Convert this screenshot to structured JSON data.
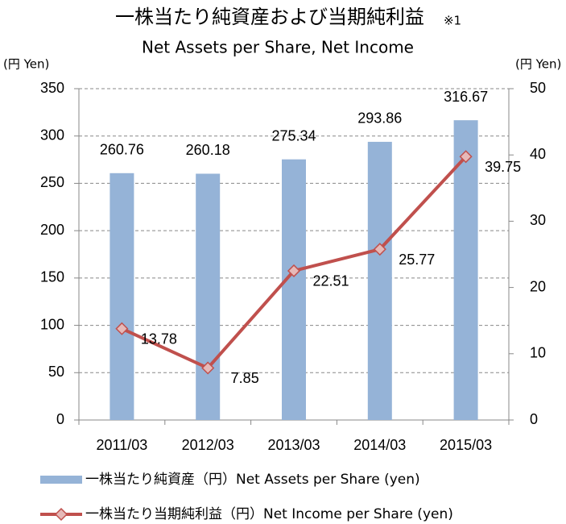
{
  "chart_data": {
    "type": "bar",
    "title": "一株当たり純資産および当期純利益",
    "title_note": "※1",
    "subtitle": "Net Assets per Share, Net Income",
    "y_label": "(円 Yen)",
    "y2_label": "(円 Yen)",
    "categories": [
      "2011/03",
      "2012/03",
      "2013/03",
      "2014/03",
      "2015/03"
    ],
    "series": [
      {
        "name": "一株当たり純資産（円）Net Assets per Share (yen)",
        "type": "bar",
        "color": "#95b3d7",
        "values": [
          260.76,
          260.18,
          275.34,
          293.86,
          316.67
        ]
      },
      {
        "name": "一株当たり当期純利益（円）Net Income per Share (yen)",
        "type": "line",
        "axis": "y2",
        "color": "#c0504d",
        "marker_color": "#e6b9b8",
        "values": [
          13.78,
          7.85,
          22.51,
          25.77,
          39.75
        ]
      }
    ],
    "ylim": [
      0,
      350
    ],
    "yticks": [
      0,
      50,
      100,
      150,
      200,
      250,
      300,
      350
    ],
    "y2lim": [
      0,
      50
    ],
    "y2ticks": [
      0,
      10,
      20,
      30,
      40,
      50
    ],
    "grid": true
  }
}
